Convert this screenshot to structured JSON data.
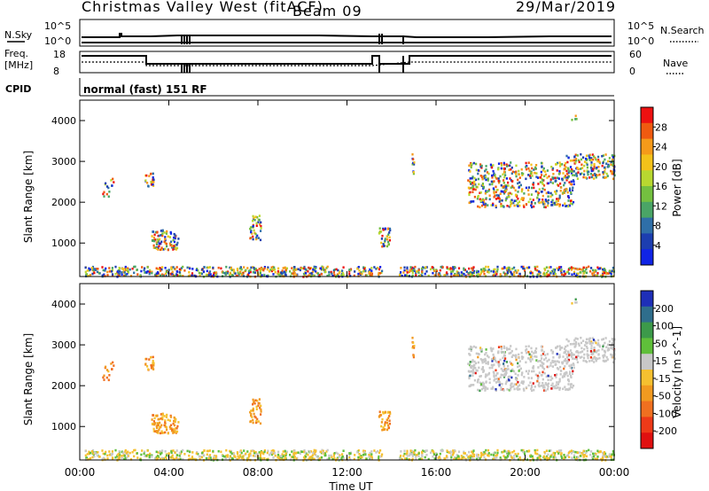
{
  "header": {
    "title": "Christmas Valley West (fitACF)",
    "beam": "Beam 09",
    "date": "29/Mar/2019"
  },
  "strip": {
    "nsky_label": "N.Sky",
    "nsky_ticks": [
      "10^5",
      "10^0"
    ],
    "nsearch_label": "N.Search",
    "nsearch_ticks": [
      "10^5",
      "10^0"
    ],
    "freq_label": "Freq.",
    "freq_unit": "[MHz]",
    "freq_ticks": [
      "18",
      "8"
    ],
    "nave_label": "Nave",
    "nave_ticks": [
      "60",
      "0"
    ],
    "cpid_label": "CPID",
    "cpid_text": "normal (fast) 151 RF"
  },
  "chart_data": [
    {
      "type": "heatmap",
      "title": "Power",
      "ylabel": "Slant Range [km]",
      "colorbar_label": "Power [dB]",
      "ylim": [
        180,
        4500
      ],
      "yticks": [
        "4000",
        "3000",
        "2000",
        "1000"
      ],
      "colorbar_ticks": [
        "28",
        "24",
        "20",
        "16",
        "12",
        "8",
        "4"
      ],
      "colorbar_colors": [
        "#ee1111",
        "#f05a10",
        "#f59a1a",
        "#f3c21a",
        "#b8d830",
        "#74c040",
        "#4aa566",
        "#2f6fa8",
        "#1c3eb0",
        "#1024e6"
      ]
    },
    {
      "type": "heatmap",
      "title": "Velocity",
      "ylabel": "Slant Range [km]",
      "colorbar_label": "Velocity [m s^-1]",
      "ylim": [
        180,
        4500
      ],
      "yticks": [
        "4000",
        "3000",
        "2000",
        "1000"
      ],
      "colorbar_ticks": [
        "200",
        "100",
        "50",
        "15",
        "-15",
        "-50",
        "-100",
        "-200"
      ],
      "colorbar_colors": [
        "#1e2fb8",
        "#2f6e8c",
        "#3c9a4a",
        "#5fbf3a",
        "#c8c8c8",
        "#f5c030",
        "#f19a20",
        "#f07020",
        "#ee3a18",
        "#e01010"
      ]
    }
  ],
  "xaxis": {
    "label": "Time UT",
    "ticks": [
      "00:00",
      "04:00",
      "08:00",
      "12:00",
      "16:00",
      "20:00",
      "00:00"
    ]
  }
}
